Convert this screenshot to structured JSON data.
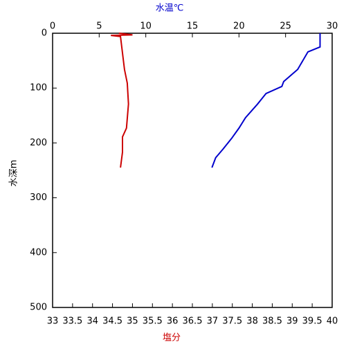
{
  "chart_data": {
    "type": "line",
    "x_label": "塩分",
    "x2_label": "水温℃",
    "y_label": "水深m",
    "xlim": [
      33,
      40
    ],
    "xticks": [
      33,
      33.5,
      34,
      34.5,
      35,
      35.5,
      36,
      36.5,
      37,
      37.5,
      38,
      38.5,
      39,
      39.5,
      40
    ],
    "x2lim": [
      0,
      30
    ],
    "x2ticks": [
      0,
      5,
      10,
      15,
      20,
      25,
      30
    ],
    "ylim": [
      0,
      500
    ],
    "yticks": [
      0,
      100,
      200,
      300,
      400,
      500
    ],
    "y_inverted": true,
    "x_label_color": "#cc0000",
    "x2_label_color": "#0000cc",
    "series": [
      {
        "color": "#cc0000",
        "axis": "x",
        "x": [
          34.66,
          35.0,
          34.46,
          34.7,
          34.8,
          34.87,
          34.9,
          34.85,
          34.75,
          34.75,
          34.7
        ],
        "y": [
          0,
          3,
          4,
          6,
          66,
          91,
          129,
          173,
          189,
          217,
          245
        ]
      },
      {
        "color": "#0000cc",
        "axis": "x2",
        "x": [
          28.7,
          28.7,
          27.4,
          26.3,
          24.8,
          24.6,
          22.9,
          22.0,
          20.7,
          20.0,
          19.2,
          18.3,
          17.5,
          17.1
        ],
        "y": [
          0,
          25,
          34,
          66,
          88,
          97,
          110,
          129,
          154,
          173,
          192,
          211,
          227,
          245
        ]
      }
    ]
  }
}
